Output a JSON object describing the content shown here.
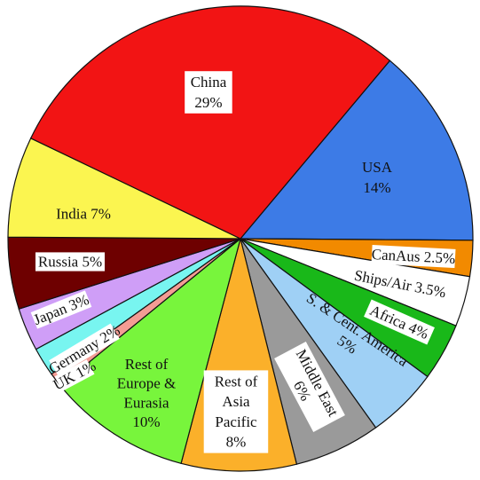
{
  "chart_data": {
    "type": "pie",
    "title": "",
    "start_angle_deg": 40,
    "direction": "clockwise",
    "slices": [
      {
        "label": "USA",
        "value": 14,
        "value_label": "14%",
        "color": "#3d7be6"
      },
      {
        "label": "CanAus",
        "value": 2.5,
        "value_label": "2.5%",
        "color": "#f28a00"
      },
      {
        "label": "Ships/Air",
        "value": 3.5,
        "value_label": "3.5%",
        "color": "#ffffff"
      },
      {
        "label": "Africa",
        "value": 4,
        "value_label": "4%",
        "color": "#19b819"
      },
      {
        "label": "S. & Cent. America",
        "value": 5,
        "value_label": "5%",
        "color": "#9fd0f5"
      },
      {
        "label": "Middle East",
        "value": 6,
        "value_label": "6%",
        "color": "#9a9a9a"
      },
      {
        "label": "Rest of Asia Pacific",
        "value": 8,
        "value_label": "8%",
        "color": "#fbb02a"
      },
      {
        "label": "Rest of Europe & Eurasia",
        "value": 10,
        "value_label": "10%",
        "color": "#78f53c"
      },
      {
        "label": "UK",
        "value": 1,
        "value_label": "1%",
        "color": "#f49c94"
      },
      {
        "label": "Germany",
        "value": 2,
        "value_label": "2%",
        "color": "#78f5f0"
      },
      {
        "label": "Japan",
        "value": 3,
        "value_label": "3%",
        "color": "#cf9ef7"
      },
      {
        "label": "Russia",
        "value": 5,
        "value_label": "5%",
        "color": "#6e0000"
      },
      {
        "label": "India",
        "value": 7,
        "value_label": "7%",
        "color": "#fbf550"
      },
      {
        "label": "China",
        "value": 29,
        "value_label": "29%",
        "color": "#f21414"
      }
    ]
  }
}
